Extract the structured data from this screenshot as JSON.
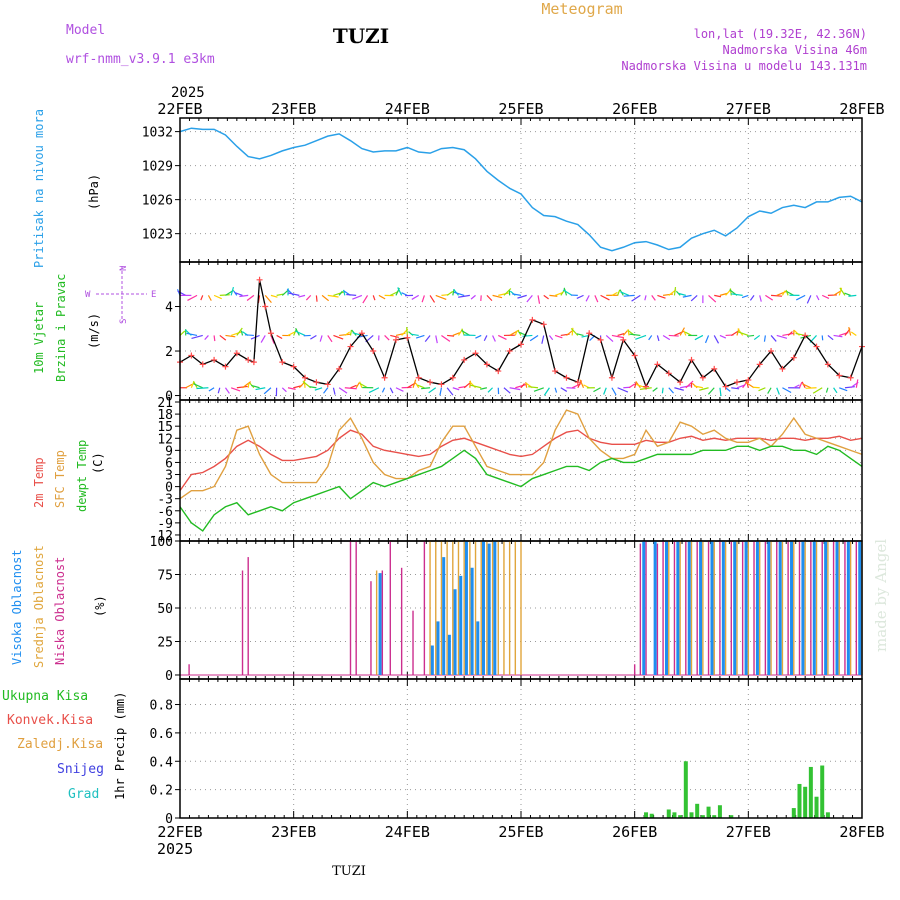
{
  "header": {
    "model_label": "Model",
    "model_name": "wrf-nmm_v3.9.1  e3km",
    "station": "TUZI",
    "title": "Meteogram",
    "lonlat": "lon,lat (19.32E, 42.36N)",
    "elevation": "Nadmorska Visina 46m",
    "model_elevation": "Nadmorska Visina u modelu 143.131m",
    "year_top": "2025",
    "year_bottom": "2025",
    "footer_station": "TUZI",
    "watermark": "made by Angel"
  },
  "colors": {
    "pressure": "#2aa0e8",
    "wind_speed": "#000000",
    "wind_marker": "#ff4a4a",
    "temp_2m": "#e8504a",
    "temp_sfc": "#e0a040",
    "dewpoint": "#22bb22",
    "cloud_high": "#1e8ef0",
    "cloud_mid": "#e0a63c",
    "cloud_low": "#cc2e8e",
    "precip": "#33c233",
    "purple_text": "#b050e0",
    "header_text": "#b040d0",
    "meteogram_text": "#e0a84a"
  },
  "dates": [
    "22FEB",
    "23FEB",
    "24FEB",
    "25FEB",
    "26FEB",
    "27FEB",
    "28FEB"
  ],
  "compass": {
    "n": "N",
    "s": "S",
    "w": "W",
    "e": "E"
  },
  "panels": {
    "pressure": {
      "label": "Pritisak na nivou mora",
      "unit": "(hPa)"
    },
    "wind": {
      "label1": "10m Vjetar",
      "label2": "Brzina i Pravac",
      "unit": "(m/s)"
    },
    "temp": {
      "label_2m": "2m Temp",
      "label_sfc": "SFC Temp",
      "label_dew": "dewpt Temp",
      "unit": "(C)"
    },
    "cloud": {
      "label_high": "Visoka Oblacnost",
      "label_mid": "Srednja Oblacnost",
      "label_low": "Niska Oblacnost",
      "unit": "(%)"
    },
    "precip": {
      "label_total": "Ukupna Kisa",
      "label_conv": "Konvek.Kisa",
      "label_ice": "Zaledj.Kisa",
      "label_snow": "Snijeg",
      "label_hail": "Grad",
      "unit": "1hr Precip (mm)"
    }
  },
  "chart_data": [
    {
      "type": "line",
      "title": "Pritisak na nivou mora",
      "ylabel": "(hPa)",
      "x_unit": "days since 22FEB 00Z",
      "xlim": [
        0,
        6
      ],
      "ylim": [
        1020.5,
        1033.2
      ],
      "yticks": [
        1023,
        1026,
        1029,
        1032
      ],
      "series": [
        {
          "name": "pressure",
          "x": [
            0,
            0.1,
            0.2,
            0.3,
            0.4,
            0.5,
            0.6,
            0.7,
            0.8,
            0.9,
            1.0,
            1.1,
            1.2,
            1.3,
            1.4,
            1.5,
            1.6,
            1.7,
            1.8,
            1.9,
            2.0,
            2.1,
            2.2,
            2.3,
            2.4,
            2.5,
            2.6,
            2.7,
            2.8,
            2.9,
            3.0,
            3.1,
            3.2,
            3.3,
            3.4,
            3.5,
            3.6,
            3.7,
            3.8,
            3.9,
            4.0,
            4.1,
            4.2,
            4.3,
            4.4,
            4.5,
            4.6,
            4.7,
            4.8,
            4.9,
            5.0,
            5.1,
            5.2,
            5.3,
            5.4,
            5.5,
            5.6,
            5.7,
            5.8,
            5.9,
            6.0
          ],
          "values": [
            1032,
            1032.3,
            1032.2,
            1032.2,
            1031.7,
            1030.7,
            1029.8,
            1029.6,
            1029.9,
            1030.3,
            1030.6,
            1030.8,
            1031.2,
            1031.6,
            1031.8,
            1031.2,
            1030.5,
            1030.2,
            1030.3,
            1030.3,
            1030.6,
            1030.2,
            1030.1,
            1030.5,
            1030.6,
            1030.4,
            1029.6,
            1028.5,
            1027.7,
            1027.0,
            1026.5,
            1025.3,
            1024.6,
            1024.5,
            1024.1,
            1023.8,
            1022.9,
            1021.8,
            1021.5,
            1021.8,
            1022.2,
            1022.3,
            1022.0,
            1021.6,
            1021.8,
            1022.6,
            1023.0,
            1023.3,
            1022.8,
            1023.5,
            1024.5,
            1025.0,
            1024.8,
            1025.3,
            1025.5,
            1025.3,
            1025.8,
            1025.8,
            1026.2,
            1026.3,
            1025.8
          ]
        }
      ]
    },
    {
      "type": "line",
      "title": "10m Vjetar Brzina i Pravac",
      "ylabel": "(m/s)",
      "x_unit": "days since 22FEB 00Z",
      "xlim": [
        0,
        6
      ],
      "ylim": [
        -0.2,
        6
      ],
      "yticks": [
        0,
        2,
        4
      ],
      "series": [
        {
          "name": "wind_speed",
          "x": [
            0,
            0.1,
            0.2,
            0.3,
            0.4,
            0.5,
            0.6,
            0.65,
            0.7,
            0.75,
            0.8,
            0.9,
            1.0,
            1.1,
            1.2,
            1.3,
            1.4,
            1.5,
            1.6,
            1.7,
            1.8,
            1.9,
            2.0,
            2.1,
            2.2,
            2.3,
            2.4,
            2.5,
            2.6,
            2.7,
            2.8,
            2.9,
            3.0,
            3.1,
            3.2,
            3.3,
            3.4,
            3.5,
            3.6,
            3.7,
            3.8,
            3.9,
            4.0,
            4.1,
            4.2,
            4.3,
            4.4,
            4.5,
            4.6,
            4.7,
            4.8,
            4.9,
            5.0,
            5.1,
            5.2,
            5.3,
            5.4,
            5.5,
            5.6,
            5.7,
            5.8,
            5.9,
            6.0
          ],
          "values": [
            1.5,
            1.8,
            1.4,
            1.6,
            1.3,
            1.9,
            1.6,
            1.5,
            5.2,
            4.0,
            2.8,
            1.5,
            1.3,
            0.8,
            0.6,
            0.5,
            1.2,
            2.2,
            2.8,
            2.0,
            0.8,
            2.5,
            2.6,
            0.8,
            0.6,
            0.5,
            0.8,
            1.6,
            1.9,
            1.4,
            1.1,
            2.0,
            2.3,
            3.4,
            3.2,
            1.1,
            0.8,
            0.6,
            2.8,
            2.5,
            0.8,
            2.5,
            1.8,
            0.4,
            1.4,
            1.0,
            0.6,
            1.6,
            0.8,
            1.2,
            0.4,
            0.6,
            0.7,
            1.4,
            2.0,
            1.2,
            1.7,
            2.7,
            2.2,
            1.4,
            0.9,
            0.8,
            2.2
          ]
        }
      ]
    },
    {
      "type": "line",
      "title": "Temperature",
      "ylabel": "(C)",
      "x_unit": "days since 22FEB 00Z",
      "xlim": [
        0,
        6
      ],
      "ylim": [
        -13.5,
        21.5
      ],
      "yticks": [
        -12,
        -9,
        -6,
        -3,
        0,
        3,
        6,
        9,
        12,
        15,
        18,
        21
      ],
      "series": [
        {
          "name": "2m Temp",
          "x": [
            0,
            0.1,
            0.2,
            0.3,
            0.4,
            0.5,
            0.6,
            0.7,
            0.8,
            0.9,
            1.0,
            1.1,
            1.2,
            1.3,
            1.4,
            1.5,
            1.6,
            1.7,
            1.8,
            1.9,
            2.0,
            2.1,
            2.2,
            2.3,
            2.4,
            2.5,
            2.6,
            2.7,
            2.8,
            2.9,
            3.0,
            3.1,
            3.2,
            3.3,
            3.4,
            3.5,
            3.6,
            3.7,
            3.8,
            3.9,
            4.0,
            4.1,
            4.2,
            4.3,
            4.4,
            4.5,
            4.6,
            4.7,
            4.8,
            4.9,
            5.0,
            5.1,
            5.2,
            5.3,
            5.4,
            5.5,
            5.6,
            5.7,
            5.8,
            5.9,
            6.0
          ],
          "values": [
            -1,
            3,
            3.5,
            5,
            7,
            10,
            11.5,
            10,
            8,
            6.5,
            6.5,
            7,
            7.5,
            9,
            12,
            14,
            13,
            10,
            9,
            8.5,
            8,
            7.5,
            8,
            10,
            11.5,
            12,
            11,
            10,
            9,
            8,
            7.5,
            8,
            10,
            12,
            13.5,
            14,
            12,
            11,
            10.5,
            10.5,
            10.5,
            11.5,
            11,
            11,
            12,
            12.5,
            11.5,
            12,
            11.5,
            12,
            12,
            12,
            11.5,
            12,
            12,
            11.5,
            12,
            12,
            12.5,
            11.5,
            12
          ]
        },
        {
          "name": "SFC Temp",
          "x": [
            0,
            0.1,
            0.2,
            0.3,
            0.4,
            0.5,
            0.6,
            0.7,
            0.8,
            0.9,
            1.0,
            1.1,
            1.2,
            1.3,
            1.4,
            1.5,
            1.6,
            1.7,
            1.8,
            1.9,
            2.0,
            2.1,
            2.2,
            2.3,
            2.4,
            2.5,
            2.6,
            2.7,
            2.8,
            2.9,
            3.0,
            3.1,
            3.2,
            3.3,
            3.4,
            3.5,
            3.6,
            3.7,
            3.8,
            3.9,
            4.0,
            4.1,
            4.2,
            4.3,
            4.4,
            4.5,
            4.6,
            4.7,
            4.8,
            4.9,
            5.0,
            5.1,
            5.2,
            5.3,
            5.4,
            5.5,
            5.6,
            5.7,
            5.8,
            5.9,
            6.0
          ],
          "values": [
            -3,
            -1,
            -1,
            0,
            5,
            14,
            15,
            8,
            3,
            1,
            1,
            1,
            1,
            5,
            14,
            17,
            12,
            6,
            3,
            2,
            2,
            4,
            5,
            11,
            15,
            15,
            10,
            5,
            4,
            3,
            3,
            3,
            6,
            14,
            19,
            18,
            12,
            9,
            7,
            7,
            8,
            14,
            10,
            11,
            16,
            15,
            13,
            14,
            12,
            11,
            11,
            12,
            10,
            13,
            17,
            13,
            12,
            11,
            10,
            9,
            8
          ]
        },
        {
          "name": "dewpt Temp",
          "x": [
            0,
            0.1,
            0.2,
            0.3,
            0.4,
            0.5,
            0.6,
            0.7,
            0.8,
            0.9,
            1.0,
            1.1,
            1.2,
            1.3,
            1.4,
            1.5,
            1.6,
            1.7,
            1.8,
            1.9,
            2.0,
            2.1,
            2.2,
            2.3,
            2.4,
            2.5,
            2.6,
            2.7,
            2.8,
            2.9,
            3.0,
            3.1,
            3.2,
            3.3,
            3.4,
            3.5,
            3.6,
            3.7,
            3.8,
            3.9,
            4.0,
            4.1,
            4.2,
            4.3,
            4.4,
            4.5,
            4.6,
            4.7,
            4.8,
            4.9,
            5.0,
            5.1,
            5.2,
            5.3,
            5.4,
            5.5,
            5.6,
            5.7,
            5.8,
            5.9,
            6.0
          ],
          "values": [
            -5,
            -9,
            -11,
            -7,
            -5,
            -4,
            -7,
            -6,
            -5,
            -6,
            -4,
            -3,
            -2,
            -1,
            0,
            -3,
            -1,
            1,
            0,
            1,
            2,
            3,
            4,
            5,
            7,
            9,
            7,
            3,
            2,
            1,
            0,
            2,
            3,
            4,
            5,
            5,
            4,
            6,
            7,
            6,
            6,
            7,
            8,
            8,
            8,
            8,
            9,
            9,
            9,
            10,
            10,
            9,
            10,
            10,
            9,
            9,
            8,
            10,
            9,
            7,
            5
          ]
        }
      ]
    },
    {
      "type": "bar",
      "title": "Oblacnost",
      "ylabel": "(%)",
      "x_unit": "days since 22FEB 00Z",
      "xlim": [
        0,
        6
      ],
      "ylim": [
        -3,
        100
      ],
      "yticks": [
        0,
        25,
        50,
        75,
        100
      ],
      "series": [
        {
          "name": "Niska Oblacnost",
          "x": [
            0.08,
            0.55,
            0.6,
            1.5,
            1.55,
            1.68,
            1.78,
            1.85,
            1.95,
            2.05,
            2.15,
            4.0,
            4.05,
            4.1,
            4.2,
            4.25,
            4.35,
            4.45,
            4.55,
            4.65,
            4.75,
            4.85,
            4.95,
            5.05,
            5.15,
            5.25,
            5.35,
            5.45,
            5.55,
            5.65,
            5.75,
            5.85,
            5.95
          ],
          "values": [
            8,
            78,
            88,
            100,
            100,
            70,
            78,
            100,
            80,
            48,
            100,
            8,
            98,
            100,
            98,
            100,
            100,
            100,
            100,
            100,
            100,
            100,
            100,
            100,
            100,
            100,
            100,
            100,
            100,
            100,
            100,
            100,
            100
          ]
        },
        {
          "name": "Srednja Oblacnost",
          "x": [
            1.73,
            2.2,
            2.25,
            2.3,
            2.35,
            2.4,
            2.45,
            2.5,
            2.55,
            2.6,
            2.65,
            2.7,
            2.75,
            2.8,
            2.85,
            2.9,
            2.95,
            3.0,
            4.3,
            4.4,
            4.5,
            4.6,
            4.7,
            4.8,
            4.9,
            5.0,
            5.1,
            5.2,
            5.3,
            5.4,
            5.5,
            5.6,
            5.7,
            5.8,
            5.9,
            6.0
          ],
          "values": [
            78,
            100,
            100,
            100,
            100,
            100,
            100,
            100,
            100,
            100,
            100,
            100,
            100,
            100,
            100,
            100,
            100,
            100,
            100,
            100,
            100,
            100,
            100,
            100,
            100,
            100,
            100,
            100,
            100,
            100,
            100,
            100,
            100,
            100,
            100,
            100
          ]
        },
        {
          "name": "Visoka Oblacnost",
          "x": [
            1.76,
            2.22,
            2.27,
            2.32,
            2.37,
            2.42,
            2.47,
            2.52,
            2.57,
            2.62,
            2.67,
            2.72,
            2.77,
            4.08,
            4.18,
            4.28,
            4.38,
            4.48,
            4.58,
            4.68,
            4.78,
            4.88,
            4.98,
            5.08,
            5.18,
            5.28,
            5.38,
            5.48,
            5.58,
            5.68,
            5.78,
            5.88,
            5.98
          ],
          "values": [
            76,
            22,
            40,
            88,
            30,
            64,
            74,
            100,
            80,
            40,
            100,
            98,
            100,
            100,
            100,
            100,
            100,
            100,
            100,
            100,
            100,
            100,
            100,
            100,
            100,
            100,
            100,
            100,
            100,
            100,
            100,
            100,
            100
          ]
        }
      ]
    },
    {
      "type": "bar",
      "title": "1hr Precip",
      "ylabel": "1hr Precip (mm)",
      "x_unit": "days since 22FEB 00Z",
      "xlim": [
        0,
        6
      ],
      "ylim": [
        0,
        0.98
      ],
      "yticks": [
        0,
        0.2,
        0.4,
        0.6,
        0.8
      ],
      "series": [
        {
          "name": "Ukupna Kisa",
          "x": [
            4.1,
            4.15,
            4.3,
            4.35,
            4.4,
            4.45,
            4.5,
            4.55,
            4.6,
            4.65,
            4.7,
            4.75,
            4.85,
            5.4,
            5.45,
            5.5,
            5.55,
            5.6,
            5.65,
            5.7
          ],
          "values": [
            0.04,
            0.03,
            0.06,
            0.04,
            0.02,
            0.4,
            0.04,
            0.1,
            0.02,
            0.08,
            0.02,
            0.09,
            0.02,
            0.07,
            0.24,
            0.22,
            0.36,
            0.15,
            0.37,
            0.04
          ]
        }
      ]
    }
  ]
}
